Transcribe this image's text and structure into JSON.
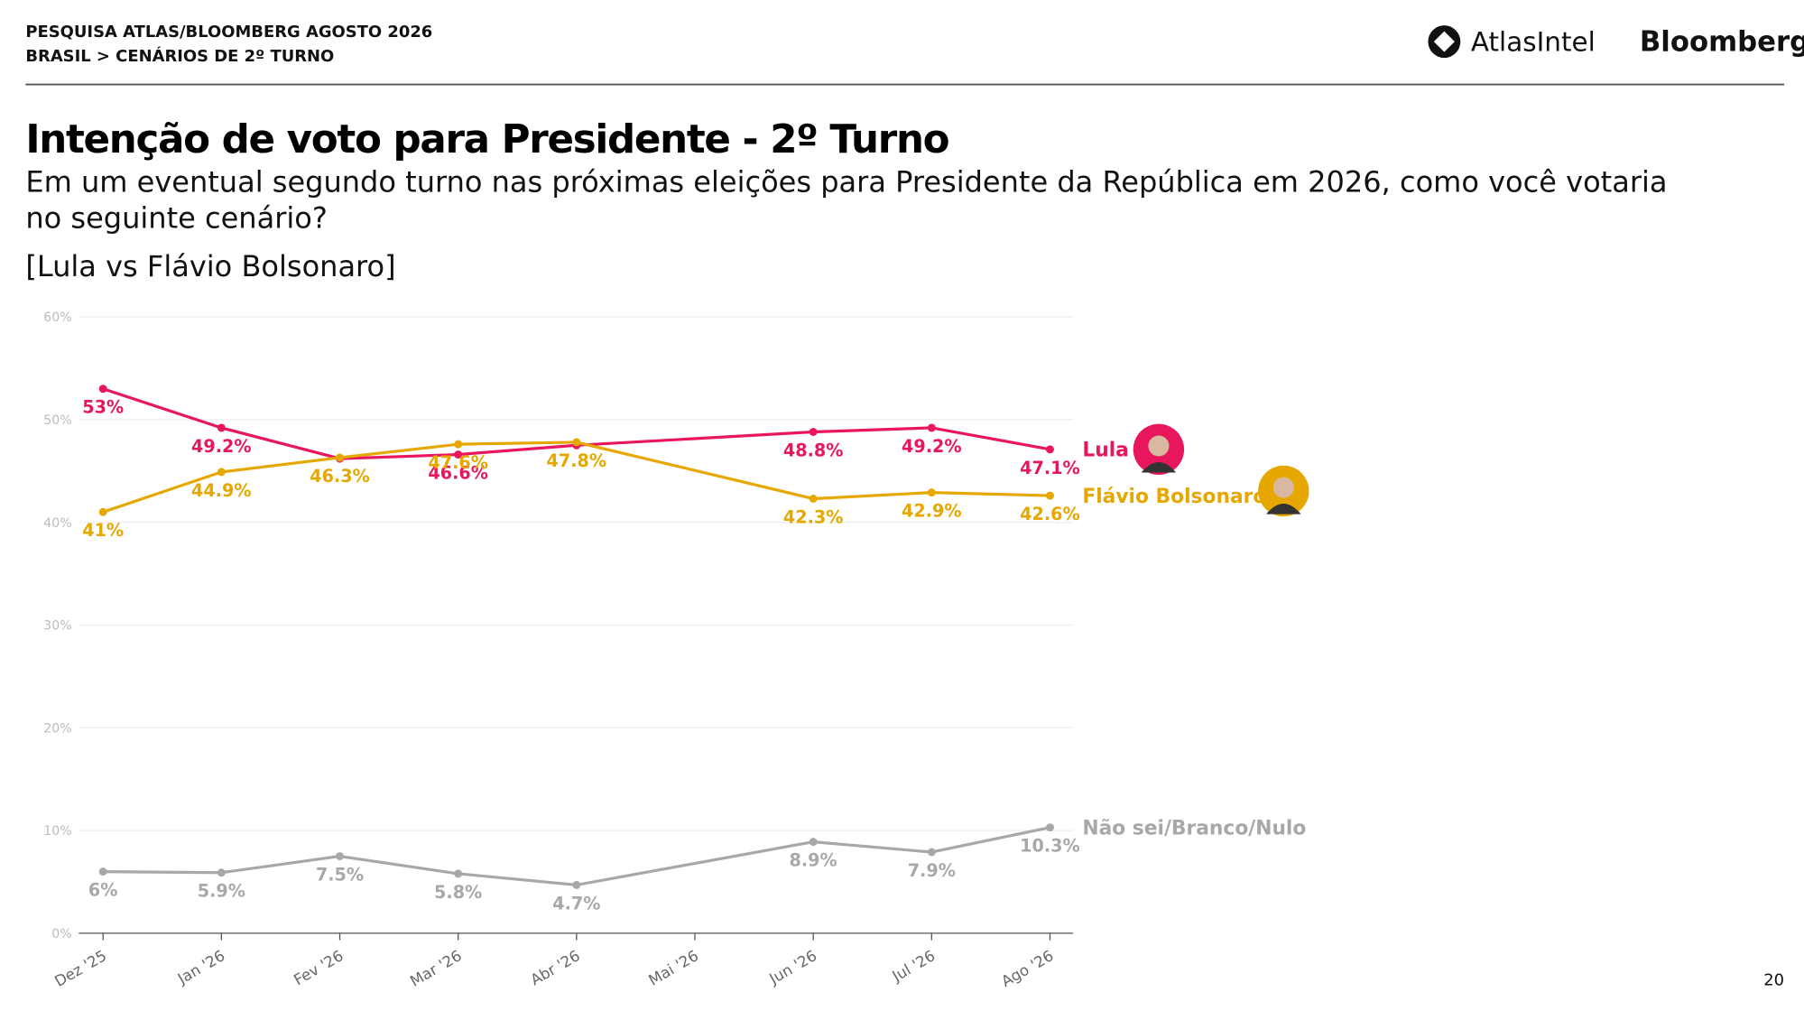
{
  "header": {
    "survey": "PESQUISA ATLAS/BLOOMBERG AGOSTO 2026",
    "section": "BRASIL > CENÁRIOS DE 2º TURNO",
    "logo_atlas": "AtlasIntel",
    "logo_bloomberg": "Bloomberg"
  },
  "page_number": "20",
  "chart_data": {
    "type": "line",
    "title": "Intenção de voto para Presidente - 2º Turno",
    "subtitle": [
      "Em um eventual segundo turno nas próximas eleições para Presidente da República em 2026, como você votaria",
      "no seguinte cenário?"
    ],
    "scenario": "[Lula vs Flávio Bolsonaro]",
    "categories": [
      "Dez '25",
      "Jan '26",
      "Fev '26",
      "Mar '26",
      "Abr '26",
      "Mai '26",
      "Jun '26",
      "Jul '26",
      "Ago '26"
    ],
    "ylim": [
      0,
      60
    ],
    "yticks": [
      {
        "value": 0,
        "label": "0%"
      },
      {
        "value": 10,
        "label": "10%"
      },
      {
        "value": 20,
        "label": "20%"
      },
      {
        "value": 30,
        "label": "30%"
      },
      {
        "value": 40,
        "label": "40%"
      },
      {
        "value": 50,
        "label": "50%"
      },
      {
        "value": 60,
        "label": "60%"
      }
    ],
    "grid": true,
    "series": [
      {
        "name": "Lula",
        "color": "#e8175d",
        "values": [
          53,
          49.2,
          46.2,
          46.6,
          47.5,
          null,
          48.8,
          49.2,
          47.1
        ],
        "value_labels": [
          "53%",
          "49.2%",
          null,
          "46.6%",
          null,
          null,
          "48.8%",
          "49.2%",
          "47.1%"
        ]
      },
      {
        "name": "Flávio Bolsonaro",
        "color": "#e6a800",
        "values": [
          41,
          44.9,
          46.3,
          47.6,
          47.8,
          null,
          42.3,
          42.9,
          42.6
        ],
        "value_labels": [
          "41%",
          "44.9%",
          "46.3%",
          "47.6%",
          "47.8%",
          null,
          "42.3%",
          "42.9%",
          "42.6%"
        ]
      },
      {
        "name": "Não sei/Branco/Nulo",
        "color": "#a8a8a8",
        "values": [
          6,
          5.9,
          7.5,
          5.8,
          4.7,
          null,
          8.9,
          7.9,
          10.3
        ],
        "value_labels": [
          "6%",
          "5.9%",
          "7.5%",
          "5.8%",
          "4.7%",
          null,
          "8.9%",
          "7.9%",
          "10.3%"
        ]
      }
    ]
  }
}
